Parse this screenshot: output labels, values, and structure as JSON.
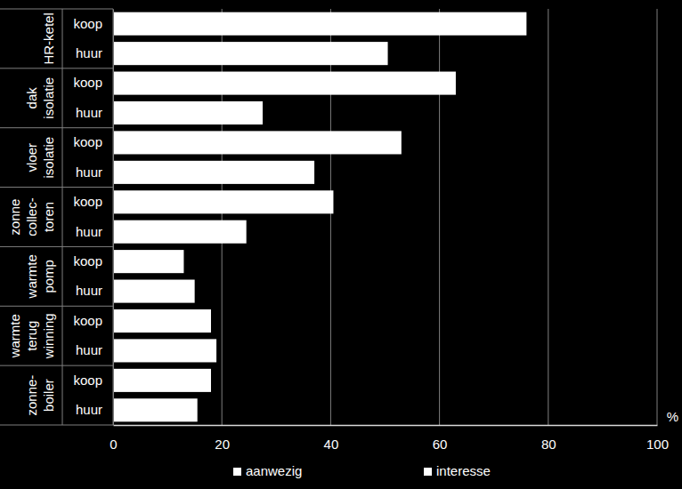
{
  "chart_data": {
    "type": "bar",
    "orientation": "horizontal",
    "categories": [
      "koop",
      "huur",
      "koop",
      "huur",
      "koop",
      "huur",
      "koop",
      "huur",
      "koop",
      "huur",
      "koop",
      "huur",
      "koop",
      "huur"
    ],
    "groups": [
      {
        "label": [
          "HR-ketel"
        ],
        "span": 2
      },
      {
        "label": [
          "dak",
          "isolatie"
        ],
        "span": 2
      },
      {
        "label": [
          "vloer",
          "isolatie"
        ],
        "span": 2
      },
      {
        "label": [
          "zonne",
          "collec-",
          "toren"
        ],
        "span": 2
      },
      {
        "label": [
          "warmte",
          "pomp"
        ],
        "span": 2
      },
      {
        "label": [
          "warmte",
          "terug",
          "winning"
        ],
        "span": 2
      },
      {
        "label": [
          "zonne-",
          "boiler"
        ],
        "span": 2
      }
    ],
    "series": [
      {
        "name": "aanwezig",
        "color": "#ffffff",
        "values": [
          76,
          50.5,
          63,
          27.5,
          53,
          37,
          40.5,
          24.5,
          13,
          15,
          18,
          19,
          18,
          15.5
        ]
      },
      {
        "name": "interesse",
        "color": "#ffffff",
        "values": [
          null,
          null,
          null,
          null,
          null,
          null,
          null,
          null,
          null,
          null,
          null,
          null,
          null,
          null
        ]
      }
    ],
    "xlabel": "%",
    "xlim": [
      0,
      100
    ],
    "xticks": [
      0,
      20,
      40,
      60,
      80,
      100
    ],
    "grid": true,
    "legend": "bottom"
  }
}
